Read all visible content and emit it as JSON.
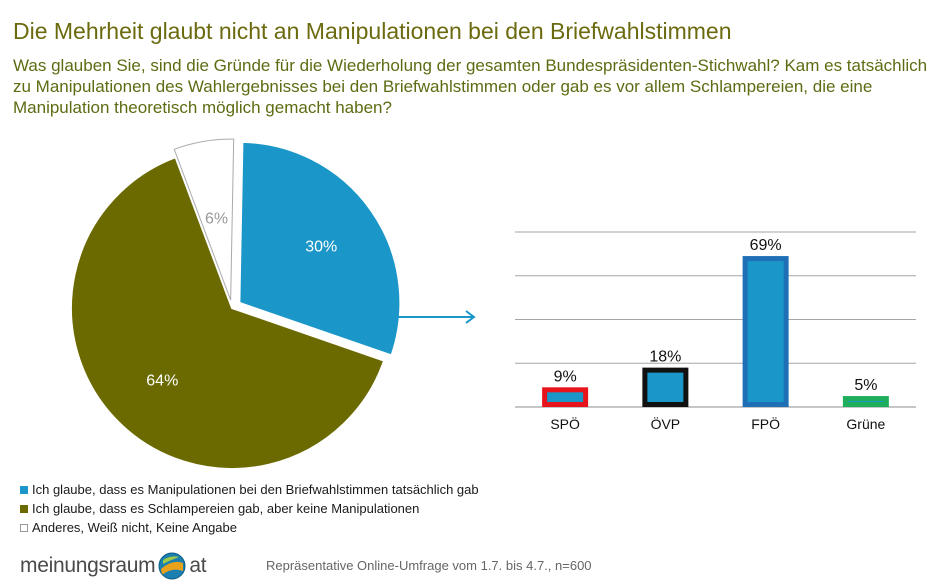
{
  "title": "Die Mehrheit glaubt nicht an Manipulationen bei den Briefwahlstimmen",
  "subtitle": "Was glauben Sie, sind die Gründe für die Wiederholung der gesamten Bundespräsidenten-Stichwahl? Kam es tatsächlich zu Manipulationen des Wahlergebnisses bei den Briefwahlstimmen oder gab es vor allem Schlampereien, die eine Manipulation theoretisch möglich gemacht haben?",
  "chart_data": [
    {
      "type": "pie",
      "slices": [
        {
          "label": "Ich glaube, dass es Manipulationen bei den Briefwahlstimmen tatsächlich gab",
          "value": 30,
          "display": "30%",
          "color": "#1b96c9"
        },
        {
          "label": "Ich glaube, dass es Schlampereien gab, aber keine Manipulationen",
          "value": 64,
          "display": "64%",
          "color": "#6b6a00"
        },
        {
          "label": "Anderes, Weiß nicht, Keine Angabe",
          "value": 6,
          "display": "6%",
          "color": "#ffffff"
        }
      ],
      "legend_position": "bottom-left"
    },
    {
      "type": "bar",
      "categories": [
        "SPÖ",
        "ÖVP",
        "FPÖ",
        "Grüne"
      ],
      "values": [
        9,
        18,
        69,
        5
      ],
      "value_labels": [
        "9%",
        "18%",
        "69%",
        "5%"
      ],
      "fill_color": "#1b96c9",
      "border_colors": [
        "#e8141b",
        "#111111",
        "#1e6fb5",
        "#1fae5c"
      ],
      "ylim": [
        0,
        80
      ],
      "grid": true
    }
  ],
  "legend": {
    "items": [
      {
        "label": "Ich glaube, dass es Manipulationen bei den Briefwahlstimmen tatsächlich gab",
        "color": "#1b96c9"
      },
      {
        "label": "Ich glaube, dass es Schlampereien gab, aber keine Manipulationen",
        "color": "#6b6a00"
      },
      {
        "label": "Anderes, Weiß nicht, Keine Angabe",
        "color": "#ffffff"
      }
    ]
  },
  "footer": {
    "logo_left": "meinungsraum",
    "logo_right": "at",
    "source": "Repräsentative Online-Umfrage vom 1.7. bis 4.7., n=600"
  }
}
